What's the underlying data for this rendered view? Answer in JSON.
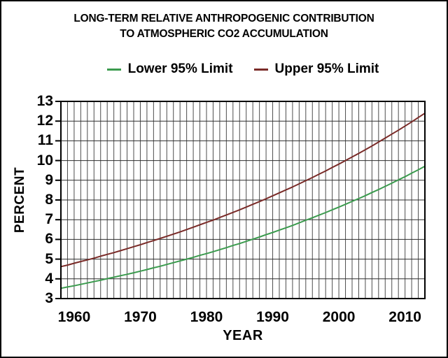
{
  "title": {
    "line1": "LONG-TERM RELATIVE ANTHROPOGENIC CONTRIBUTION",
    "line2": "TO ATMOSPHERIC CO2 ACCUMULATION"
  },
  "legend": {
    "items": [
      {
        "label": "Lower 95% Limit",
        "color": "#3B9B4E"
      },
      {
        "label": "Upper 95% Limit",
        "color": "#7A2B28"
      }
    ]
  },
  "axes": {
    "x_label": "YEAR",
    "y_label": "PERCENT"
  },
  "colors": {
    "grid_vertical": "#4d4d4d",
    "grid_horizontal": "#2e2e2e",
    "plot_border": "#000000",
    "text": "#000000"
  },
  "chart_data": {
    "type": "line",
    "title": "LONG-TERM RELATIVE ANTHROPOGENIC CONTRIBUTION TO ATMOSPHERIC CO2 ACCUMULATION",
    "xlabel": "YEAR",
    "ylabel": "PERCENT",
    "xlim": [
      1958,
      2013
    ],
    "ylim": [
      3,
      13
    ],
    "x_ticks": [
      1960,
      1970,
      1980,
      1990,
      2000,
      2010
    ],
    "y_ticks": [
      3,
      4,
      5,
      6,
      7,
      8,
      9,
      10,
      11,
      12,
      13
    ],
    "grid": {
      "x_interval_years": 1,
      "y_interval_percent": 1
    },
    "legend_position": "top",
    "x": [
      1958,
      1959,
      1960,
      1961,
      1962,
      1963,
      1964,
      1965,
      1966,
      1967,
      1968,
      1969,
      1970,
      1971,
      1972,
      1973,
      1974,
      1975,
      1976,
      1977,
      1978,
      1979,
      1980,
      1981,
      1982,
      1983,
      1984,
      1985,
      1986,
      1987,
      1988,
      1989,
      1990,
      1991,
      1992,
      1993,
      1994,
      1995,
      1996,
      1997,
      1998,
      1999,
      2000,
      2001,
      2002,
      2003,
      2004,
      2005,
      2006,
      2007,
      2008,
      2009,
      2010,
      2011,
      2012,
      2013
    ],
    "series": [
      {
        "name": "Lower 95% Limit",
        "color": "#3B9B4E",
        "values": [
          3.52,
          3.59,
          3.65,
          3.72,
          3.79,
          3.86,
          3.93,
          4.01,
          4.08,
          4.16,
          4.23,
          4.31,
          4.39,
          4.47,
          4.56,
          4.64,
          4.73,
          4.82,
          4.91,
          5.0,
          5.09,
          5.19,
          5.28,
          5.38,
          5.48,
          5.58,
          5.69,
          5.79,
          5.9,
          6.01,
          6.12,
          6.24,
          6.35,
          6.47,
          6.59,
          6.71,
          6.84,
          6.97,
          7.1,
          7.23,
          7.36,
          7.5,
          7.64,
          7.78,
          7.93,
          8.07,
          8.22,
          8.38,
          8.53,
          8.69,
          8.85,
          9.02,
          9.18,
          9.36,
          9.53,
          9.71
        ]
      },
      {
        "name": "Upper 95% Limit",
        "color": "#7A2B28",
        "values": [
          4.62,
          4.7,
          4.79,
          4.88,
          4.96,
          5.05,
          5.15,
          5.24,
          5.33,
          5.43,
          5.53,
          5.63,
          5.73,
          5.84,
          5.94,
          6.05,
          6.16,
          6.27,
          6.38,
          6.5,
          6.62,
          6.74,
          6.86,
          6.98,
          7.11,
          7.24,
          7.37,
          7.5,
          7.64,
          7.78,
          7.92,
          8.06,
          8.21,
          8.36,
          8.51,
          8.66,
          8.82,
          8.98,
          9.14,
          9.31,
          9.47,
          9.65,
          9.82,
          10.0,
          10.18,
          10.36,
          10.55,
          10.74,
          10.94,
          11.14,
          11.34,
          11.54,
          11.75,
          11.96,
          12.18,
          12.4
        ]
      }
    ]
  }
}
